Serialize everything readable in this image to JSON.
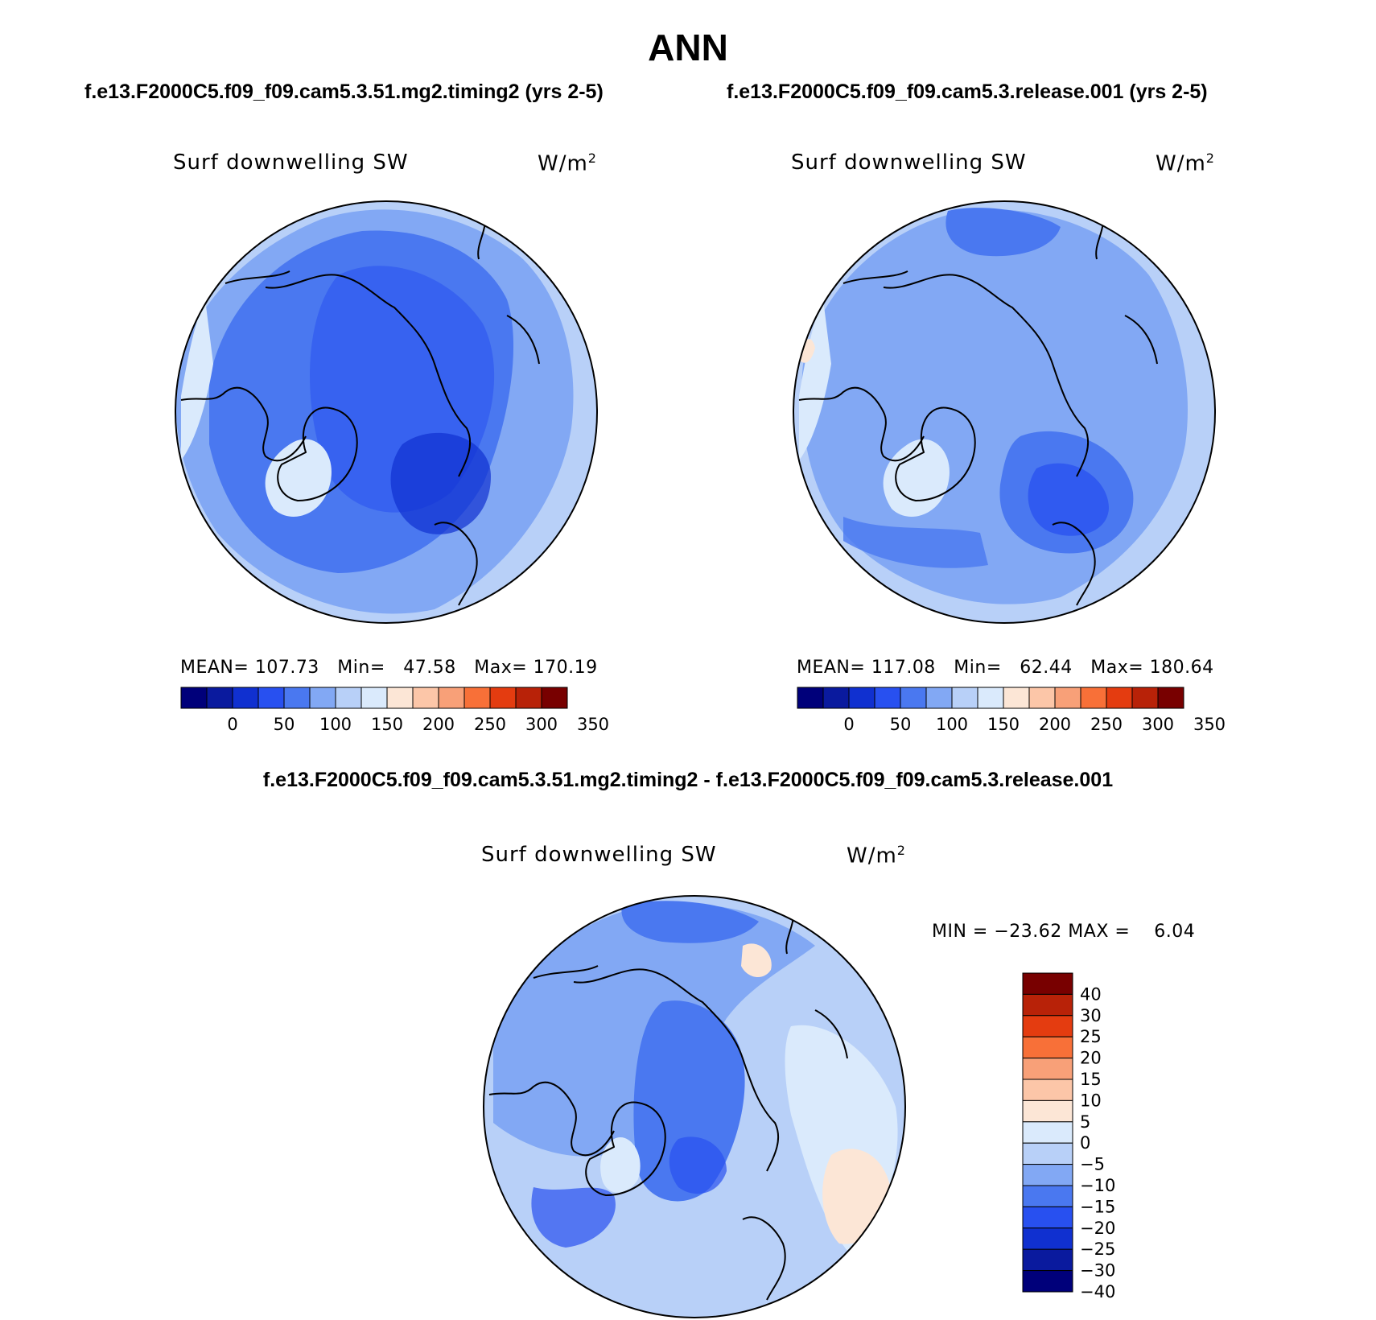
{
  "title": "ANN",
  "panels": [
    {
      "case_title": "f.e13.F2000C5.f09_f09.cam5.3.51.mg2.timing2 (yrs 2-5)",
      "variable": "Surf downwelling SW",
      "units_base": "W/m",
      "units_exp": "2",
      "mean_label": "MEAN=",
      "mean": "107.73",
      "min_label": "Min=",
      "min": "47.58",
      "max_label": "Max=",
      "max": "170.19"
    },
    {
      "case_title": "f.e13.F2000C5.f09_f09.cam5.3.release.001 (yrs 2-5)",
      "variable": "Surf downwelling SW",
      "units_base": "W/m",
      "units_exp": "2",
      "mean_label": "MEAN=",
      "mean": "117.08",
      "min_label": "Min=",
      "min": "62.44",
      "max_label": "Max=",
      "max": "180.64"
    }
  ],
  "colorbar_abs": {
    "colors": [
      "#00007a",
      "#0a1a9e",
      "#1030d0",
      "#2850f0",
      "#4a78f0",
      "#82a8f4",
      "#b8d0f8",
      "#daeafc",
      "#fce6d6",
      "#fcc6a8",
      "#f8a078",
      "#f87038",
      "#e43c10",
      "#b82208",
      "#780000"
    ],
    "labels": [
      "0",
      "50",
      "100",
      "150",
      "200",
      "250",
      "300",
      "350"
    ]
  },
  "diff": {
    "title": "f.e13.F2000C5.f09_f09.cam5.3.51.mg2.timing2 - f.e13.F2000C5.f09_f09.cam5.3.release.001",
    "variable": "Surf downwelling SW",
    "units_base": "W/m",
    "units_exp": "2",
    "min_label": "MIN =",
    "min": "−23.62",
    "max_label": "MAX =",
    "max": "6.04"
  },
  "colorbar_diff": {
    "colors_top_to_bottom": [
      "#780000",
      "#b82208",
      "#e43c10",
      "#f87038",
      "#f8a078",
      "#fcc6a8",
      "#fce6d6",
      "#daeafc",
      "#b8d0f8",
      "#82a8f4",
      "#4a78f0",
      "#2850f0",
      "#1030d0",
      "#0a1a9e",
      "#00007a"
    ],
    "labels": [
      "40",
      "30",
      "25",
      "20",
      "15",
      "10",
      "5",
      "0",
      "−5",
      "−10",
      "−15",
      "−20",
      "−25",
      "−30",
      "−40"
    ]
  }
}
